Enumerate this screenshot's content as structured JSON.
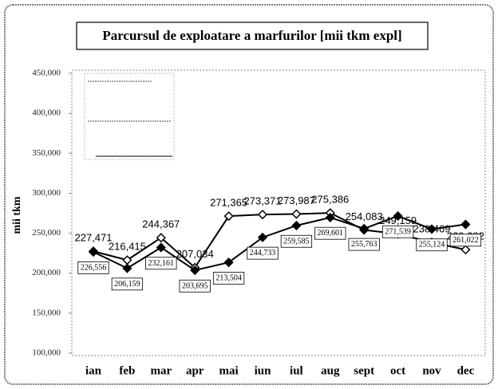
{
  "chart_data": {
    "type": "line",
    "title": "Parcursul  de exploatare a marfurilor [mii tkm expl]",
    "y_label": "mii tkm",
    "categories": [
      "ian",
      "feb",
      "mar",
      "apr",
      "mai",
      "iun",
      "iul",
      "aug",
      "sept",
      "oct",
      "nov",
      "dec"
    ],
    "series": [
      {
        "color": "#000000",
        "marker": "open-diamond",
        "values": [
          227471,
          216415,
          244367,
          207034,
          271365,
          273371,
          273987,
          275386,
          254083,
          249159,
          238469,
          229382
        ],
        "value_labels": [
          "227,471",
          "216,415",
          "244,367",
          "207,034",
          "271,365",
          "273,371",
          "273,987",
          "275,386",
          "254,083",
          "249,159",
          "238,469",
          "229,382"
        ]
      },
      {
        "color": "#000000",
        "marker": "filled-diamond",
        "values": [
          226556,
          206159,
          232161,
          203695,
          213504,
          244733,
          259585,
          269601,
          255763,
          271539,
          255124,
          261022
        ],
        "value_labels": [
          "226,556",
          "206,159",
          "232,161",
          "203,695",
          "213,504",
          "244,733",
          "259,585",
          "269,601",
          "255,763",
          "271,539",
          "255,124",
          "261,022"
        ]
      }
    ],
    "ylim": [
      100000,
      450000
    ],
    "yticks": [
      {
        "value": 100000,
        "label": "100,000"
      },
      {
        "value": 150000,
        "label": "150,000"
      },
      {
        "value": 200000,
        "label": "200,000"
      },
      {
        "value": 250000,
        "label": "250,000"
      },
      {
        "value": 300000,
        "label": "300,000"
      },
      {
        "value": 350000,
        "label": "350,000"
      },
      {
        "value": 400000,
        "label": "400,000"
      },
      {
        "value": 450000,
        "label": "450,000"
      }
    ]
  }
}
